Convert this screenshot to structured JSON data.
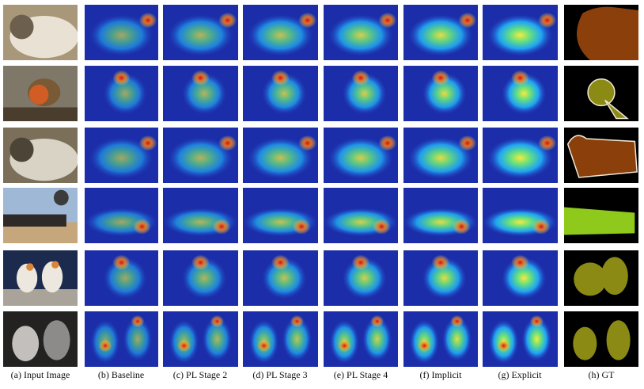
{
  "figure": {
    "columns": [
      {
        "key": "input",
        "caption": "(a) Input Image",
        "kind": "photo"
      },
      {
        "key": "baseline",
        "caption": "(b) Baseline",
        "kind": "heatmap"
      },
      {
        "key": "pl2",
        "caption": "(c) PL Stage 2",
        "kind": "heatmap"
      },
      {
        "key": "pl3",
        "caption": "(d) PL Stage 3",
        "kind": "heatmap"
      },
      {
        "key": "pl4",
        "caption": "(e) PL Stage 4",
        "kind": "heatmap"
      },
      {
        "key": "implicit",
        "caption": "(f) Implicit",
        "kind": "heatmap"
      },
      {
        "key": "explicit",
        "caption": "(g) Explicit",
        "kind": "heatmap"
      },
      {
        "key": "gt",
        "caption": "(h) GT",
        "kind": "mask"
      }
    ],
    "rows": [
      {
        "subject": "sheep",
        "photo_colors": [
          "#a9977a",
          "#e9e1d3",
          "#6d5f4d"
        ],
        "mask_color": "#8b3f0a",
        "mask_outline": false
      },
      {
        "subject": "bird",
        "photo_colors": [
          "#7f7869",
          "#d15d24",
          "#4a3d2d"
        ],
        "mask_color": "#8a8a14",
        "mask_outline": true
      },
      {
        "subject": "sheep",
        "photo_colors": [
          "#7b6f5a",
          "#d9d3c6",
          "#4c4437"
        ],
        "mask_color": "#8b3f0a",
        "mask_outline": true
      },
      {
        "subject": "train",
        "photo_colors": [
          "#9fb8d6",
          "#2d2a28",
          "#c6a77b"
        ],
        "mask_color": "#8ec91c",
        "mask_outline": false
      },
      {
        "subject": "bird",
        "photo_colors": [
          "#1c2a4e",
          "#ede8df",
          "#d9863a"
        ],
        "mask_color": "#8a8a14",
        "mask_outline": false
      },
      {
        "subject": "bird",
        "photo_colors": [
          "#242220",
          "#c2bfbc",
          "#8d8a8a"
        ],
        "mask_color": "#8a8a14",
        "mask_outline": false
      }
    ]
  }
}
